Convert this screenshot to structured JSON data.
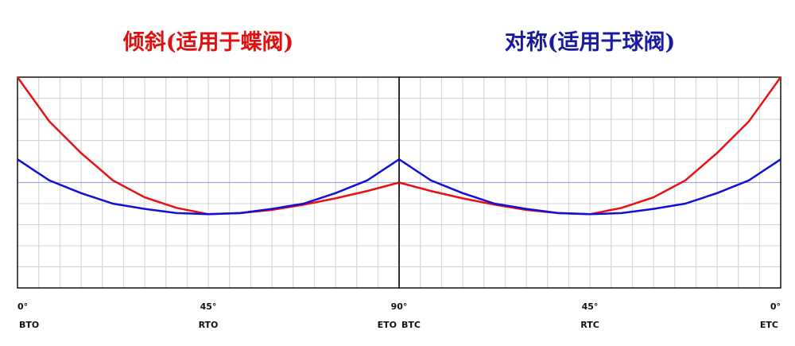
{
  "chart_data": [
    {
      "type": "line",
      "title": "倾斜(适用于蝶阀)",
      "title_color": "#e01010",
      "x": [
        0,
        7.5,
        15,
        22.5,
        30,
        37.5,
        45,
        52.5,
        60,
        67.5,
        75,
        82.5,
        90
      ],
      "xlim": [
        0,
        90
      ],
      "xticks": [
        {
          "value": 0,
          "label": "0°"
        },
        {
          "value": 45,
          "label": "45°"
        },
        {
          "value": 90,
          "label": "90°"
        }
      ],
      "xtick_names": [
        "BTO",
        "RTO",
        "ETO"
      ],
      "ylim": [
        0,
        10
      ],
      "series": [
        {
          "color": "#e81010",
          "values": [
            10,
            7.9,
            6.4,
            5.1,
            4.3,
            3.8,
            3.5,
            3.55,
            3.7,
            3.95,
            4.25,
            4.6,
            5.0
          ]
        },
        {
          "color": "#1010d8",
          "values": [
            6.1,
            5.1,
            4.5,
            4.0,
            3.75,
            3.55,
            3.5,
            3.55,
            3.75,
            4.0,
            4.5,
            5.1,
            6.1
          ]
        }
      ]
    },
    {
      "type": "line",
      "title": "对称(适用于球阀)",
      "title_color": "#1a1aa0",
      "x": [
        90,
        82.5,
        75,
        67.5,
        60,
        52.5,
        45,
        37.5,
        30,
        22.5,
        15,
        7.5,
        0
      ],
      "xlim": [
        90,
        0
      ],
      "xticks": [
        {
          "value": 45,
          "label": "45°"
        },
        {
          "value": 0,
          "label": "0°"
        }
      ],
      "xtick_names": [
        "BTC",
        "RTC",
        "ETC"
      ],
      "ylim": [
        0,
        10
      ],
      "series": [
        {
          "color": "#e81010",
          "values": [
            5.0,
            4.6,
            4.25,
            3.95,
            3.7,
            3.55,
            3.5,
            3.8,
            4.3,
            5.1,
            6.4,
            7.9,
            10
          ]
        },
        {
          "color": "#1010d8",
          "values": [
            6.1,
            5.1,
            4.5,
            4.0,
            3.75,
            3.55,
            3.5,
            3.55,
            3.75,
            4.0,
            4.5,
            5.1,
            6.1
          ]
        }
      ]
    }
  ]
}
